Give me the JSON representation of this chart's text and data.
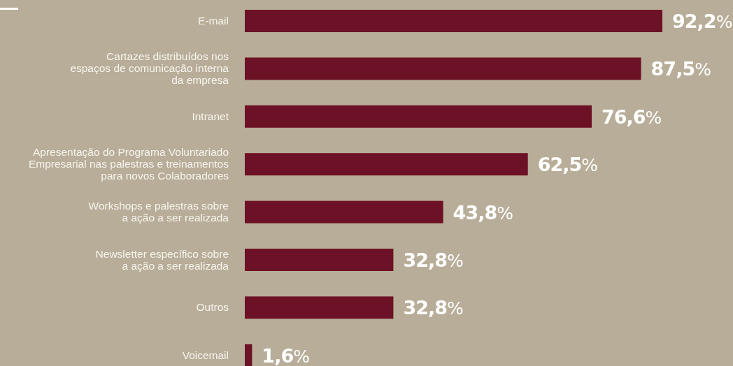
{
  "chart_data": {
    "type": "bar",
    "orientation": "horizontal",
    "categories": [
      "E-mail",
      "Cartazes distribuídos nos\nespaços de comunicação interna\nda empresa",
      "Intranet",
      "Apresentação do Programa Voluntariado\nEmpresarial nas palestras e treinamentos\npara novos Colaboradores",
      "Workshops e palestras sobre\na ação a ser realizada",
      "Newsletter específico sobre\na ação a ser realizada",
      "Outros",
      "Voicemail"
    ],
    "values": [
      92.2,
      87.5,
      76.6,
      62.5,
      43.8,
      32.8,
      32.8,
      1.6
    ],
    "value_labels": [
      "92,2%",
      "87,5%",
      "76,6%",
      "62,5%",
      "43,8%",
      "32,8%",
      "32,8%",
      "1,6%"
    ],
    "color": "#6d1126"
  }
}
